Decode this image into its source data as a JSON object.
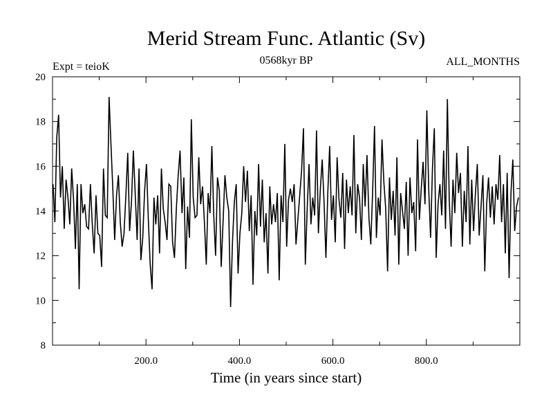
{
  "chart_data": {
    "type": "line",
    "title": "Merid Stream Func. Atlantic (Sv)",
    "subtitle_left": "Expt = teioK",
    "subtitle_center": "0568kyr BP",
    "subtitle_right": "ALL_MONTHS",
    "xlabel": "Time (in years since start)",
    "ylabel": "",
    "xlim": [
      0,
      1000
    ],
    "ylim": [
      8,
      20
    ],
    "x_ticks": [
      200,
      400,
      600,
      800
    ],
    "x_tick_labels": [
      "200.0",
      "400.0",
      "600.0",
      "800.0"
    ],
    "y_ticks": [
      8,
      10,
      12,
      14,
      16,
      18,
      20
    ],
    "y_tick_labels": [
      "8",
      "10",
      "12",
      "14",
      "16",
      "18",
      "20"
    ],
    "series": [
      {
        "name": "Merid Stream Func. Atlantic",
        "x_start": 1,
        "x_step": 4,
        "values": [
          15.2,
          13.5,
          17.3,
          18.3,
          14.6,
          16.0,
          13.2,
          15.4,
          14.6,
          13.4,
          15.9,
          14.5,
          12.3,
          15.2,
          10.5,
          15.2,
          13.9,
          14.3,
          13.3,
          13.2,
          15.2,
          13.4,
          12.1,
          14.7,
          13.0,
          12.9,
          11.5,
          15.9,
          13.8,
          13.7,
          19.1,
          17.0,
          15.0,
          12.7,
          14.7,
          15.6,
          13.5,
          12.4,
          13.0,
          14.7,
          16.6,
          13.1,
          14.4,
          16.7,
          14.7,
          12.7,
          15.9,
          11.8,
          12.8,
          14.9,
          16.1,
          13.6,
          11.6,
          10.5,
          14.6,
          13.4,
          14.7,
          12.1,
          15.9,
          14.1,
          13.5,
          12.7,
          15.2,
          15.1,
          12.6,
          11.9,
          14.1,
          15.6,
          16.7,
          13.9,
          15.5,
          11.4,
          14.2,
          12.8,
          18.1,
          14.6,
          13.7,
          13.8,
          16.4,
          14.3,
          15.1,
          13.5,
          11.6,
          14.8,
          13.9,
          16.9,
          13.8,
          12.0,
          15.5,
          14.9,
          11.5,
          13.5,
          15.6,
          14.6,
          14.0,
          9.7,
          12.6,
          14.4,
          15.2,
          11.2,
          13.0,
          13.9,
          16.0,
          14.4,
          15.8,
          13.1,
          14.7,
          10.7,
          14.0,
          12.9,
          16.1,
          13.3,
          15.4,
          12.6,
          13.9,
          11.2,
          15.1,
          13.4,
          14.3,
          13.5,
          14.8,
          10.9,
          14.7,
          13.5,
          17.0,
          12.4,
          14.5,
          15.0,
          14.4,
          15.2,
          12.5,
          13.6,
          14.7,
          15.8,
          17.7,
          11.6,
          14.1,
          16.1,
          13.4,
          14.6,
          13.8,
          17.6,
          13.0,
          14.9,
          16.3,
          14.4,
          11.9,
          14.8,
          16.9,
          13.6,
          14.7,
          12.6,
          16.4,
          14.5,
          13.7,
          15.7,
          12.3,
          15.4,
          13.9,
          15.1,
          13.8,
          17.4,
          13.0,
          15.2,
          14.6,
          12.7,
          16.1,
          14.2,
          16.5,
          13.7,
          12.5,
          14.9,
          17.8,
          12.8,
          14.6,
          13.8,
          17.2,
          15.3,
          14.1,
          11.3,
          15.5,
          13.6,
          14.9,
          12.9,
          16.4,
          11.6,
          14.8,
          14.0,
          13.2,
          15.3,
          12.0,
          15.5,
          13.9,
          14.4,
          12.2,
          17.2,
          13.6,
          15.0,
          16.2,
          14.3,
          18.5,
          15.0,
          12.8,
          15.9,
          17.7,
          11.9,
          14.3,
          15.2,
          13.8,
          16.7,
          13.2,
          19.0,
          14.5,
          12.4,
          15.4,
          13.9,
          16.6,
          14.8,
          15.7,
          12.4,
          14.9,
          13.5,
          16.9,
          12.5,
          15.4,
          13.1,
          14.8,
          16.1,
          12.9,
          14.2,
          15.6,
          11.3,
          14.3,
          15.5,
          13.7,
          15.1,
          13.4,
          15.2,
          14.5,
          16.5,
          13.5,
          15.2,
          12.1,
          15.7,
          11.0,
          14.8,
          16.3,
          13.1,
          14.2,
          14.6
        ]
      }
    ]
  }
}
